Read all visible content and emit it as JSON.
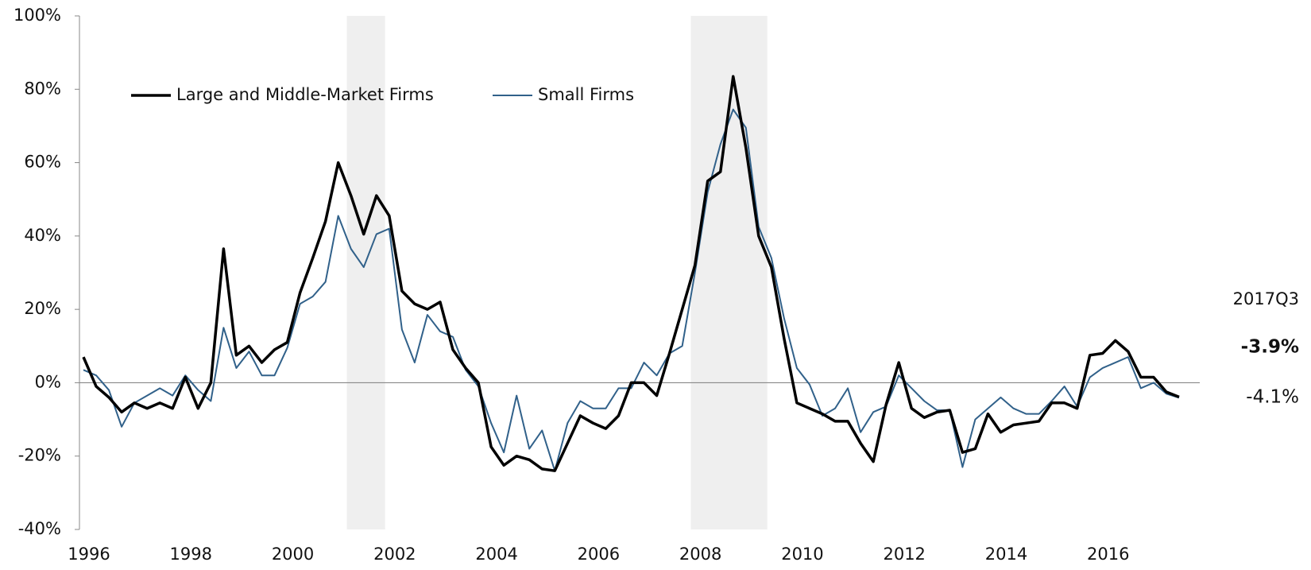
{
  "chart_data": {
    "type": "line",
    "x": [
      1996,
      1996.25,
      1996.5,
      1996.75,
      1997,
      1997.25,
      1997.5,
      1997.75,
      1998,
      1998.25,
      1998.5,
      1998.75,
      1999,
      1999.25,
      1999.5,
      1999.75,
      2000,
      2000.25,
      2000.5,
      2000.75,
      2001,
      2001.25,
      2001.5,
      2001.75,
      2002,
      2002.25,
      2002.5,
      2002.75,
      2003,
      2003.25,
      2003.5,
      2003.75,
      2004,
      2004.25,
      2004.5,
      2004.75,
      2005,
      2005.25,
      2005.5,
      2005.75,
      2006,
      2006.25,
      2006.5,
      2006.75,
      2007,
      2007.25,
      2007.5,
      2007.75,
      2008,
      2008.25,
      2008.5,
      2008.75,
      2009,
      2009.25,
      2009.5,
      2009.75,
      2010,
      2010.25,
      2010.5,
      2010.75,
      2011,
      2011.25,
      2011.5,
      2011.75,
      2012,
      2012.25,
      2012.5,
      2012.75,
      2013,
      2013.25,
      2013.5,
      2013.75,
      2014,
      2014.25,
      2014.5,
      2014.75,
      2015,
      2015.25,
      2015.5,
      2015.75,
      2016,
      2016.25,
      2016.5,
      2016.75,
      2017,
      2017.25,
      2017.5
    ],
    "series": [
      {
        "name": "Large and Middle-Market Firms",
        "color": "#000000",
        "width": 3.5,
        "last_value_label": "-3.9%",
        "values": [
          7,
          -1,
          -4,
          -8,
          -5.5,
          -7,
          -5.5,
          -7,
          1.5,
          -7,
          0,
          36.5,
          7.5,
          10,
          5.5,
          9,
          11,
          24.5,
          34,
          44,
          60,
          51,
          40.5,
          51,
          45.5,
          25,
          21.5,
          20,
          22,
          9,
          4,
          0,
          -17.5,
          -22.5,
          -20,
          -21,
          -23.5,
          -24,
          -16.5,
          -9,
          -11,
          -12.5,
          -9,
          0,
          0,
          -3.5,
          8,
          20,
          32,
          55,
          57.5,
          83.5,
          64,
          40,
          31.5,
          12,
          -5.5,
          -7,
          -8.5,
          -10.5,
          -10.5,
          -16.5,
          -21.5,
          -6,
          5.5,
          -7,
          -9.5,
          -8,
          -7.5,
          -19,
          -18,
          -8.5,
          -13.5,
          -11.5,
          -11,
          -10.5,
          -5.5,
          -5.5,
          -7,
          7.5,
          8,
          11.5,
          8.5,
          1.5,
          1.5,
          -2.5,
          -3.9
        ]
      },
      {
        "name": "Small Firms",
        "color": "#31618a",
        "width": 2,
        "last_value_label": "-4.1%",
        "values": [
          3.5,
          2,
          -2,
          -12,
          -5.5,
          -3.5,
          -1.5,
          -3.5,
          2,
          -2,
          -5,
          15,
          4,
          8.5,
          2,
          2,
          9.5,
          21.5,
          23.5,
          27.5,
          45.5,
          36.5,
          31.5,
          40.5,
          42,
          14.5,
          5.5,
          18.5,
          14,
          12.5,
          3.5,
          -1,
          -11,
          -19,
          -3.5,
          -18,
          -13,
          -24,
          -11,
          -5,
          -7,
          -7,
          -1.5,
          -1.5,
          5.5,
          2,
          8,
          10,
          30,
          52,
          65,
          74.5,
          69.5,
          42.5,
          34,
          17.5,
          4,
          -0.5,
          -9,
          -7,
          -1.5,
          -13.5,
          -8,
          -6.5,
          2,
          -1.5,
          -5,
          -7.5,
          -7.5,
          -23,
          -10,
          -7,
          -4,
          -7,
          -8.5,
          -8.5,
          -5,
          -1,
          -6.5,
          1.5,
          4,
          5.5,
          7,
          -1.5,
          0,
          -3,
          -4.1
        ]
      }
    ],
    "annotation": "2017Q3",
    "recessions": [
      [
        2001.17,
        2001.92
      ],
      [
        2007.92,
        2009.42
      ]
    ],
    "xlim": [
      1996,
      2017.75
    ],
    "xticks": [
      1996,
      1998,
      2000,
      2002,
      2004,
      2006,
      2008,
      2010,
      2012,
      2014,
      2016
    ],
    "ylim": [
      -40,
      100
    ],
    "yticks": [
      {
        "value": -40,
        "label": "-40%"
      },
      {
        "value": -20,
        "label": "-20%"
      },
      {
        "value": 0,
        "label": "0%"
      },
      {
        "value": 20,
        "label": "20%"
      },
      {
        "value": 40,
        "label": "40%"
      },
      {
        "value": 60,
        "label": "60%"
      },
      {
        "value": 80,
        "label": "80%"
      },
      {
        "value": 100,
        "label": "100%"
      }
    ],
    "legend": "top-left"
  }
}
